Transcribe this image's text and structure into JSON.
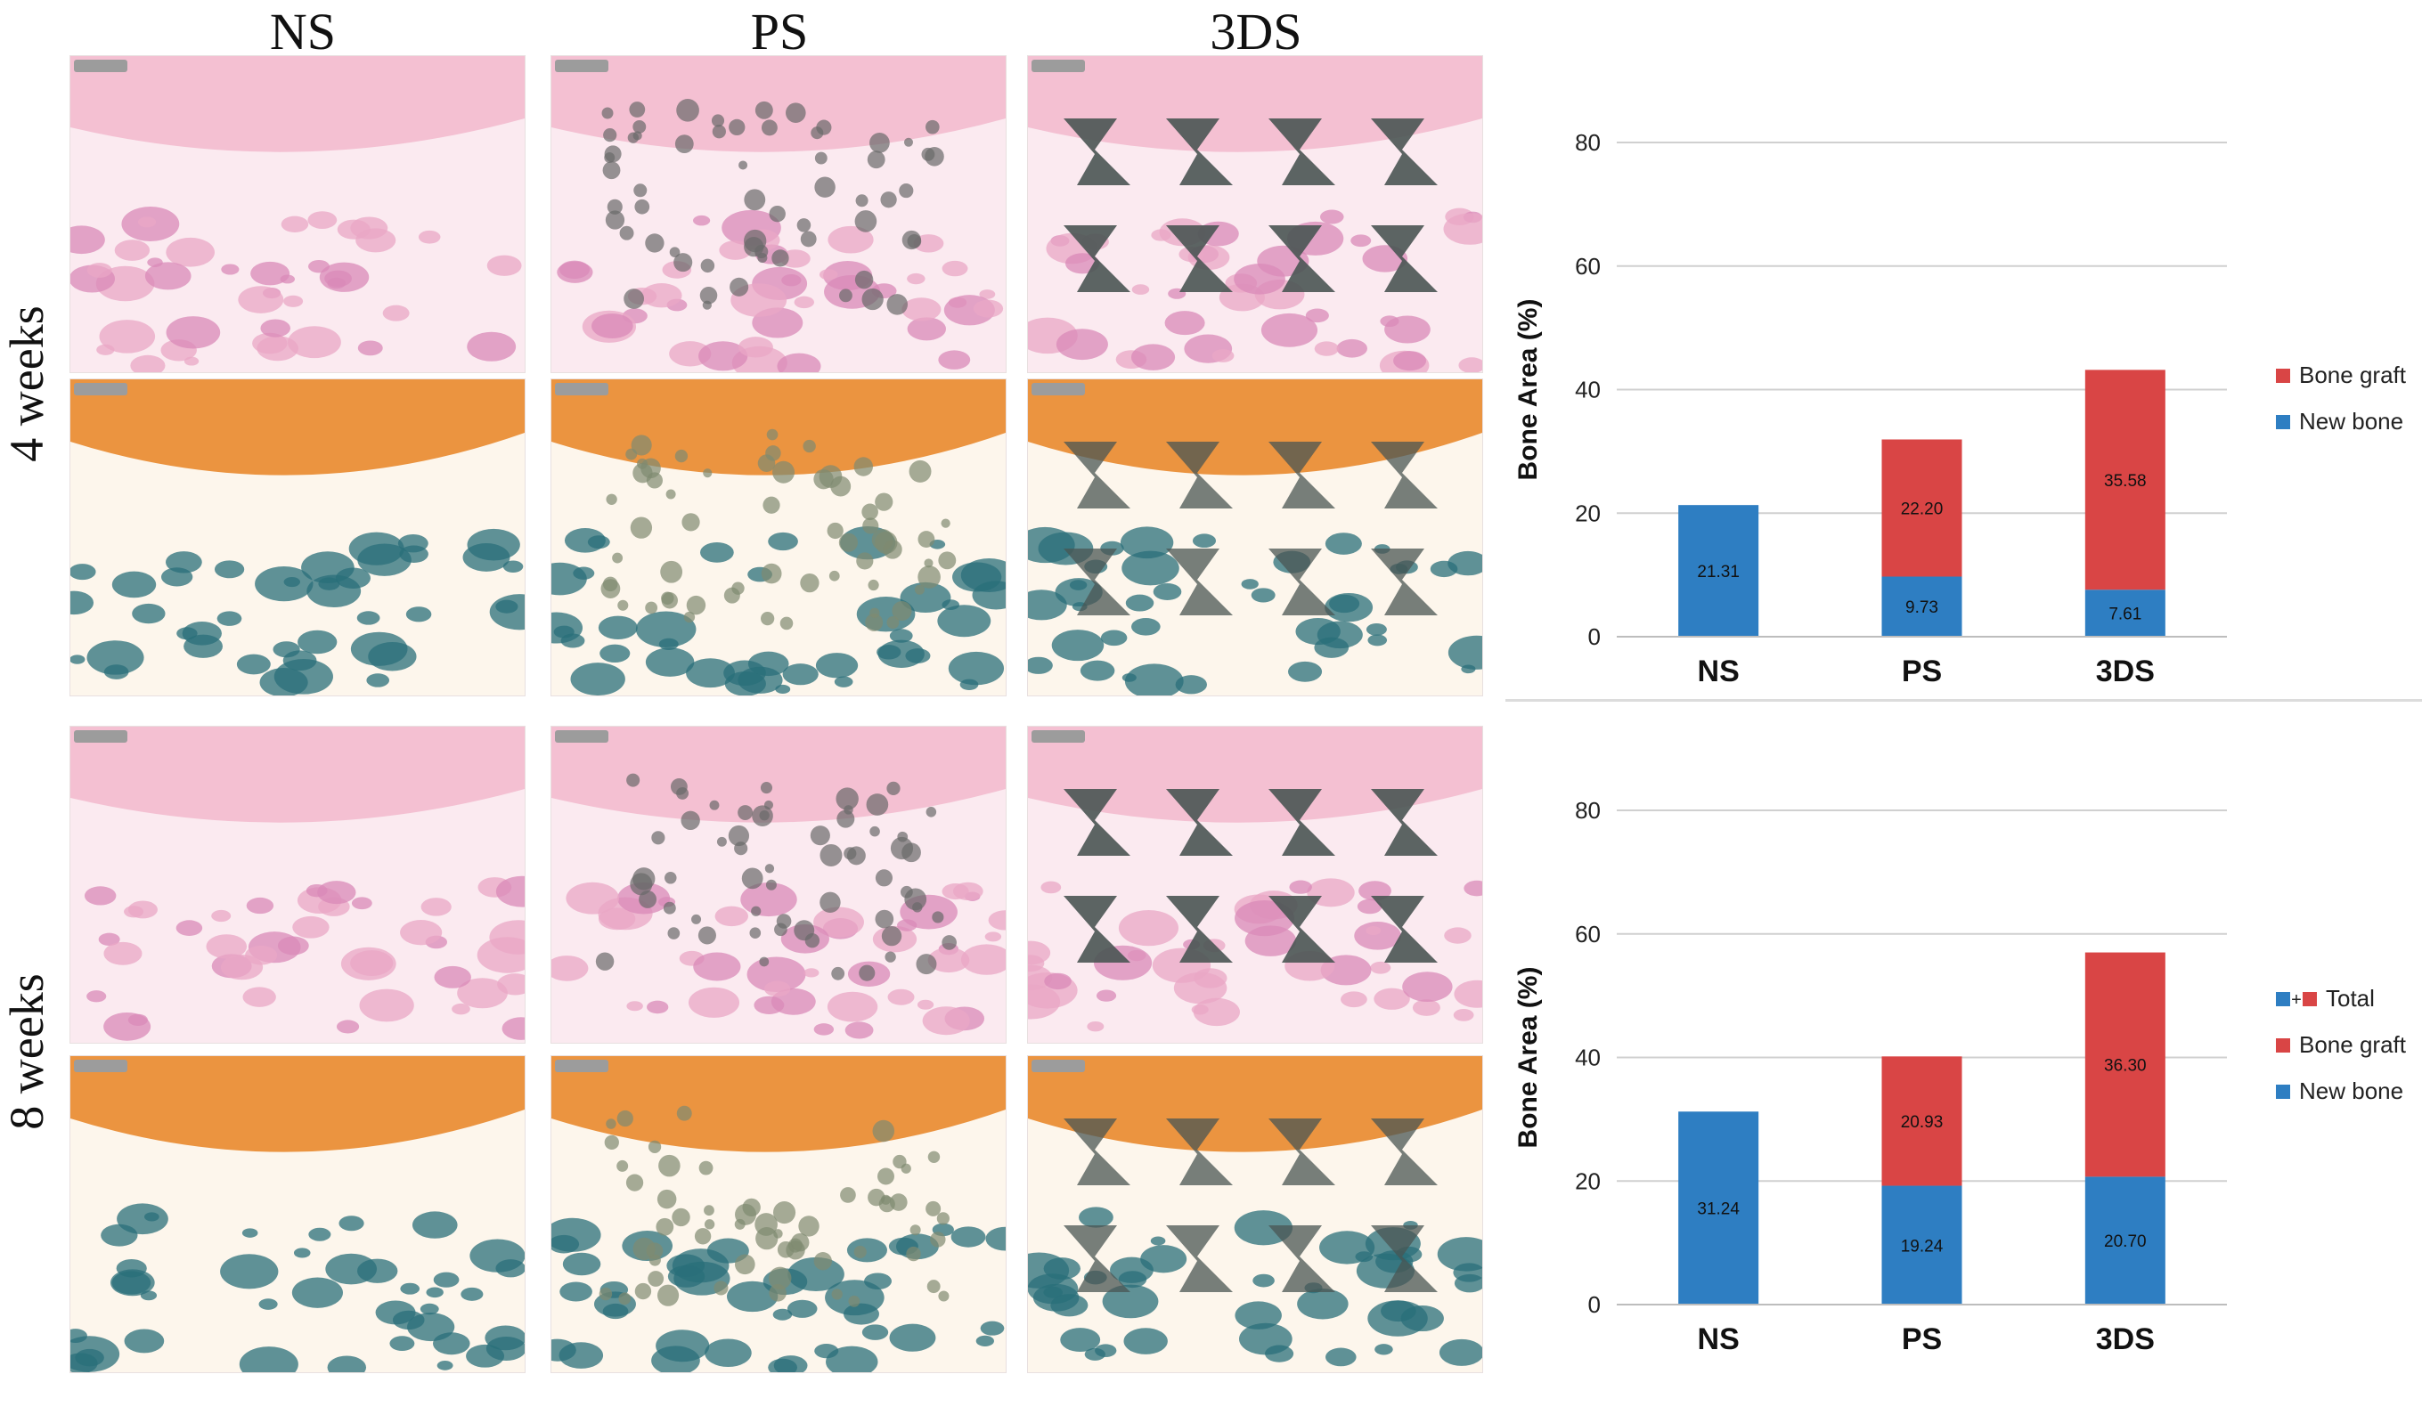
{
  "columns": [
    "NS",
    "PS",
    "3DS"
  ],
  "rows": [
    "4 weeks",
    "8 weeks"
  ],
  "colors": {
    "new_bone": "#2e7ec2",
    "bone_graft": "#d94545",
    "he_stain": "#f2b8cc",
    "trichrome": "#2a6f7a",
    "scaffold": "#4a5553"
  },
  "chart_data": [
    {
      "type": "bar",
      "stacked": true,
      "categories": [
        "NS",
        "PS",
        "3DS"
      ],
      "series": [
        {
          "name": "New bone",
          "values": [
            21.31,
            9.73,
            7.61
          ]
        },
        {
          "name": "Bone graft",
          "values": [
            0,
            22.2,
            35.58
          ]
        }
      ],
      "labels": {
        "New bone": [
          "21.31",
          "9.73",
          "7.61"
        ],
        "Bone graft": [
          "",
          "22.20",
          "35.58"
        ]
      },
      "ylabel": "Bone Area (%)",
      "ylim": [
        0,
        80
      ],
      "yticks": [
        0,
        20,
        40,
        60,
        80
      ],
      "legend": [
        "Bone graft",
        "New bone"
      ]
    },
    {
      "type": "bar",
      "stacked": true,
      "categories": [
        "NS",
        "PS",
        "3DS"
      ],
      "series": [
        {
          "name": "New bone",
          "values": [
            31.24,
            19.24,
            20.7
          ]
        },
        {
          "name": "Bone graft",
          "values": [
            0,
            20.93,
            36.3
          ]
        }
      ],
      "labels": {
        "New bone": [
          "31.24",
          "19.24",
          "20.70"
        ],
        "Bone graft": [
          "",
          "20.93",
          "36.30"
        ]
      },
      "ylabel": "Bone Area (%)",
      "ylim": [
        0,
        80
      ],
      "yticks": [
        0,
        20,
        40,
        60,
        80
      ],
      "legend": [
        "Total",
        "Bone graft",
        "New bone"
      ]
    }
  ]
}
